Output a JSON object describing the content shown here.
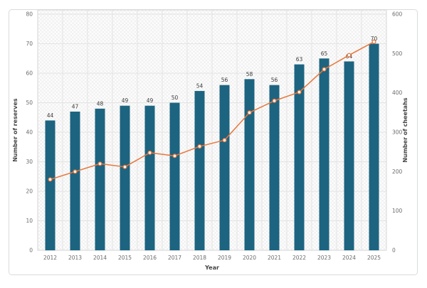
{
  "figure": {
    "title": "",
    "frame_border_color": "#d9dbdd",
    "background_color": "#ffffff"
  },
  "chart_data": {
    "type": "bar",
    "subtype": "bar-line-combo",
    "categories": [
      "2012",
      "2013",
      "2014",
      "2015",
      "2016",
      "2017",
      "2018",
      "2019",
      "2020",
      "2021",
      "2022",
      "2023",
      "2024",
      "2025"
    ],
    "series": [
      {
        "name": "Number of reserves",
        "type": "bar",
        "axis": "left",
        "color": "#1d6480",
        "data_labels_shown": true,
        "values": [
          44,
          47,
          48,
          49,
          49,
          50,
          54,
          56,
          58,
          56,
          63,
          65,
          64,
          70
        ]
      },
      {
        "name": "Number of cheetahs",
        "type": "line",
        "axis": "right",
        "color": "#e8763b",
        "marker": "circle-white-fill-orange-edge",
        "marker_fill": "#ffffff",
        "values": [
          180,
          200,
          220,
          212,
          248,
          240,
          264,
          280,
          350,
          380,
          402,
          460,
          496,
          530
        ]
      }
    ],
    "left_axis": {
      "label": "Number of reserves",
      "min": 0,
      "max": 80,
      "tick_step": 10,
      "ticks": [
        "0",
        "10",
        "20",
        "30",
        "40",
        "50",
        "60",
        "70",
        "80"
      ]
    },
    "right_axis": {
      "label": "Number of cheetahs",
      "min": 0,
      "max": 600,
      "tick_step": 100,
      "ticks": [
        "0",
        "100",
        "200",
        "300",
        "400",
        "500",
        "600"
      ]
    },
    "x_axis": {
      "label": "Year"
    },
    "grid": true,
    "gridline_color": "#e4e4e4",
    "plot_border_color": "#d4d6d8",
    "plot_background": "light-crosshatch",
    "hatch_color": "#ececec",
    "tick_label_color": "#6b6b6b",
    "data_label_color": "#3c3c3c",
    "axis_title_color": "#454545",
    "legend": "none"
  }
}
